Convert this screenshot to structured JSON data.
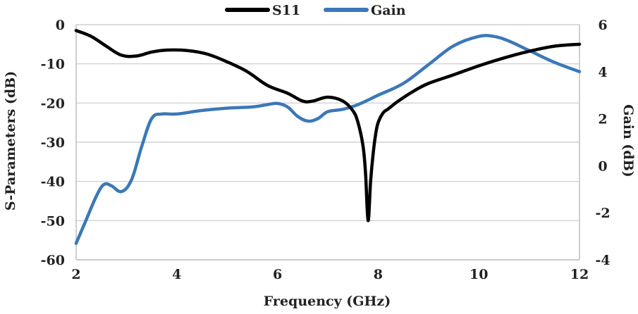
{
  "chart_data": {
    "type": "line",
    "title": "",
    "xlabel": "Frequency (GHz)",
    "ylabel": "S-Parameters (dB)",
    "y2label": "Gain (dB)",
    "xlim": [
      2,
      12
    ],
    "ylim": [
      -60,
      0
    ],
    "y2lim": [
      -4,
      6
    ],
    "x_ticks": [
      2,
      4,
      6,
      8,
      10,
      12
    ],
    "y_ticks": [
      0,
      -10,
      -20,
      -30,
      -40,
      -50,
      -60
    ],
    "y2_ticks": [
      6,
      4,
      2,
      0,
      -2,
      -4
    ],
    "grid": "horizontal",
    "legend_position": "top",
    "series": [
      {
        "name": "S11",
        "axis": "left",
        "color": "#000000",
        "x": [
          2.0,
          2.3,
          2.6,
          2.9,
          3.2,
          3.5,
          3.8,
          4.2,
          4.6,
          5.0,
          5.4,
          5.8,
          6.2,
          6.5,
          6.7,
          7.0,
          7.3,
          7.5,
          7.6,
          7.7,
          7.75,
          7.8,
          7.85,
          7.9,
          7.95,
          8.0,
          8.1,
          8.2,
          8.4,
          8.7,
          9.0,
          9.5,
          10.0,
          10.5,
          11.0,
          11.5,
          12.0
        ],
        "y": [
          -1.5,
          -3.0,
          -5.5,
          -7.8,
          -8.0,
          -7.0,
          -6.5,
          -6.6,
          -7.5,
          -9.5,
          -12.0,
          -15.5,
          -17.5,
          -19.5,
          -19.5,
          -18.5,
          -19.5,
          -22.0,
          -25.0,
          -31.0,
          -38.0,
          -50.0,
          -40.0,
          -33.0,
          -28.0,
          -25.0,
          -22.5,
          -21.5,
          -19.5,
          -17.0,
          -15.0,
          -12.8,
          -10.5,
          -8.5,
          -6.8,
          -5.5,
          -5.0
        ]
      },
      {
        "name": "Gain",
        "axis": "right",
        "color": "#3b78b8",
        "x": [
          2.0,
          2.2,
          2.4,
          2.55,
          2.7,
          2.9,
          3.1,
          3.3,
          3.5,
          3.7,
          4.0,
          4.5,
          5.0,
          5.5,
          5.8,
          6.0,
          6.2,
          6.4,
          6.6,
          6.8,
          7.0,
          7.3,
          7.6,
          8.0,
          8.5,
          9.0,
          9.5,
          10.0,
          10.3,
          10.6,
          11.0,
          11.5,
          12.0
        ],
        "y": [
          -3.3,
          -2.3,
          -1.3,
          -0.8,
          -0.85,
          -1.1,
          -0.6,
          0.8,
          2.0,
          2.2,
          2.2,
          2.35,
          2.45,
          2.5,
          2.6,
          2.65,
          2.5,
          2.1,
          1.9,
          2.0,
          2.3,
          2.4,
          2.6,
          3.0,
          3.5,
          4.3,
          5.1,
          5.5,
          5.5,
          5.3,
          4.9,
          4.4,
          4.0
        ]
      }
    ]
  }
}
